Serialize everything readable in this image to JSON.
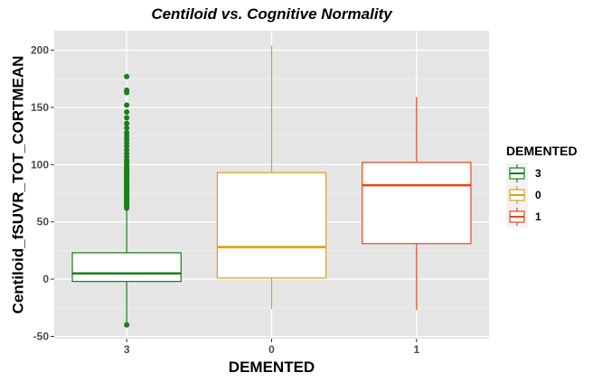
{
  "chart_data": {
    "type": "boxplot",
    "title": "Centiloid vs. Cognitive Normality",
    "xlabel": "DEMENTED",
    "ylabel": "Centiloid_fSUVR_TOT_CORTMEAN",
    "ylim": [
      -52,
      217
    ],
    "y_ticks": [
      -50,
      0,
      50,
      100,
      150,
      200
    ],
    "y_tick_labels": [
      "-50",
      "0",
      "50",
      "100",
      "150",
      "200"
    ],
    "grid": true,
    "legend": {
      "title": "DEMENTED",
      "position": "right",
      "entries": [
        "3",
        "0",
        "1"
      ]
    },
    "categories": [
      "3",
      "0",
      "1"
    ],
    "series": [
      {
        "name": "3",
        "color": "#1a7d1a",
        "whisker_low": -40,
        "q1": -2,
        "median": 5,
        "q3": 23,
        "whisker_high": 61,
        "outliers": [
          -40,
          62,
          63,
          64,
          65,
          66,
          67,
          68,
          69,
          70,
          71,
          72,
          73,
          74,
          75,
          76,
          77,
          78,
          79,
          80,
          81,
          82,
          83,
          84,
          85,
          86,
          87,
          88,
          89,
          90,
          91,
          92,
          93,
          94,
          95,
          96,
          97,
          98,
          100,
          102,
          104,
          107,
          110,
          113,
          116,
          119,
          122,
          125,
          128,
          132,
          136,
          141,
          146,
          152,
          163,
          165,
          177
        ]
      },
      {
        "name": "0",
        "color": "#e0a010",
        "whisker_low": -26,
        "q1": 1,
        "median": 28,
        "q3": 93,
        "whisker_high": 204,
        "outliers": []
      },
      {
        "name": "1",
        "color": "#e8451c",
        "whisker_low": -27,
        "q1": 31,
        "median": 82,
        "q3": 102,
        "whisker_high": 159,
        "outliers": []
      }
    ]
  }
}
